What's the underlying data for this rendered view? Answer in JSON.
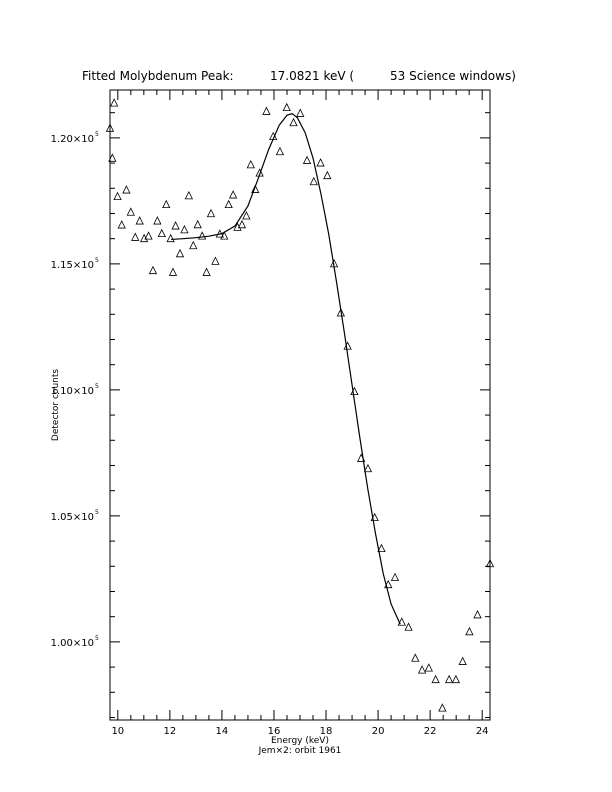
{
  "page": {
    "title_left": "Fitted Molybdenum Peak:",
    "title_energy": "17.0821 keV (",
    "title_windows": "53 Science windows)",
    "footer_note": "Jem×2: orbit 1961"
  },
  "chart_data": {
    "type": "scatter",
    "xlabel": "Energy (keV)",
    "ylabel": "Detector counts",
    "xlim": [
      9.7,
      24.3
    ],
    "ylim": [
      96900,
      121900
    ],
    "x_ticks": [
      10,
      12,
      14,
      16,
      18,
      20,
      22,
      24
    ],
    "y_ticks": [
      {
        "value": 100000,
        "mantissa": "1.00×10",
        "exp": "5"
      },
      {
        "value": 105000,
        "mantissa": "1.05×10",
        "exp": "5"
      },
      {
        "value": 110000,
        "mantissa": "1.10×10",
        "exp": "5"
      },
      {
        "value": 115000,
        "mantissa": "1.15×10",
        "exp": "5"
      },
      {
        "value": 120000,
        "mantissa": "1.20×10",
        "exp": "5"
      }
    ],
    "grid": false,
    "series": [
      {
        "style": "open-triangle",
        "points": [
          [
            9.7,
            120380
          ],
          [
            9.79,
            119190
          ],
          [
            9.86,
            121380
          ],
          [
            9.99,
            117670
          ],
          [
            10.15,
            116540
          ],
          [
            10.33,
            117930
          ],
          [
            10.5,
            117050
          ],
          [
            10.67,
            116050
          ],
          [
            10.84,
            116700
          ],
          [
            11.01,
            116000
          ],
          [
            11.18,
            116100
          ],
          [
            11.35,
            114730
          ],
          [
            11.52,
            116700
          ],
          [
            11.69,
            116200
          ],
          [
            11.86,
            117350
          ],
          [
            12.03,
            116000
          ],
          [
            12.12,
            114660
          ],
          [
            12.22,
            116500
          ],
          [
            12.39,
            115400
          ],
          [
            12.56,
            116350
          ],
          [
            12.73,
            117700
          ],
          [
            12.9,
            115720
          ],
          [
            13.07,
            116550
          ],
          [
            13.24,
            116100
          ],
          [
            13.41,
            114660
          ],
          [
            13.58,
            116990
          ],
          [
            13.75,
            115100
          ],
          [
            13.92,
            116180
          ],
          [
            14.09,
            116100
          ],
          [
            14.26,
            117350
          ],
          [
            14.43,
            117730
          ],
          [
            14.6,
            116450
          ],
          [
            14.77,
            116550
          ],
          [
            14.94,
            116900
          ],
          [
            15.11,
            118930
          ],
          [
            15.28,
            117950
          ],
          [
            15.45,
            118600
          ],
          [
            15.71,
            121050
          ],
          [
            15.97,
            120050
          ],
          [
            16.23,
            119450
          ],
          [
            16.49,
            121200
          ],
          [
            16.75,
            120600
          ],
          [
            17.01,
            120970
          ],
          [
            17.27,
            119100
          ],
          [
            17.53,
            118260
          ],
          [
            17.79,
            119000
          ],
          [
            18.05,
            118500
          ],
          [
            18.31,
            115000
          ],
          [
            18.57,
            113050
          ],
          [
            18.83,
            111730
          ],
          [
            19.09,
            109930
          ],
          [
            19.35,
            107280
          ],
          [
            19.61,
            106870
          ],
          [
            19.87,
            104930
          ],
          [
            20.13,
            103700
          ],
          [
            20.39,
            102270
          ],
          [
            20.65,
            102550
          ],
          [
            20.91,
            100780
          ],
          [
            21.17,
            100580
          ],
          [
            21.43,
            99350
          ],
          [
            21.69,
            98880
          ],
          [
            21.95,
            98960
          ],
          [
            22.21,
            98500
          ],
          [
            22.47,
            97370
          ],
          [
            22.73,
            98500
          ],
          [
            22.99,
            98500
          ],
          [
            23.25,
            99220
          ],
          [
            23.51,
            100400
          ],
          [
            23.82,
            101070
          ],
          [
            24.3,
            103100
          ]
        ]
      },
      {
        "style": "fit-curve",
        "points": [
          [
            12.05,
            115970
          ],
          [
            12.5,
            116000
          ],
          [
            13.0,
            116040
          ],
          [
            13.5,
            116100
          ],
          [
            14.0,
            116200
          ],
          [
            14.5,
            116500
          ],
          [
            15.0,
            117300
          ],
          [
            15.4,
            118400
          ],
          [
            15.8,
            119550
          ],
          [
            16.2,
            120500
          ],
          [
            16.5,
            120900
          ],
          [
            16.7,
            120960
          ],
          [
            16.9,
            120800
          ],
          [
            17.2,
            120200
          ],
          [
            17.5,
            119200
          ],
          [
            17.8,
            117800
          ],
          [
            18.1,
            116200
          ],
          [
            18.4,
            114300
          ],
          [
            18.7,
            112300
          ],
          [
            19.0,
            110200
          ],
          [
            19.3,
            108100
          ],
          [
            19.6,
            106100
          ],
          [
            19.9,
            104300
          ],
          [
            20.2,
            102700
          ],
          [
            20.5,
            101500
          ],
          [
            20.85,
            100700
          ]
        ]
      }
    ]
  }
}
